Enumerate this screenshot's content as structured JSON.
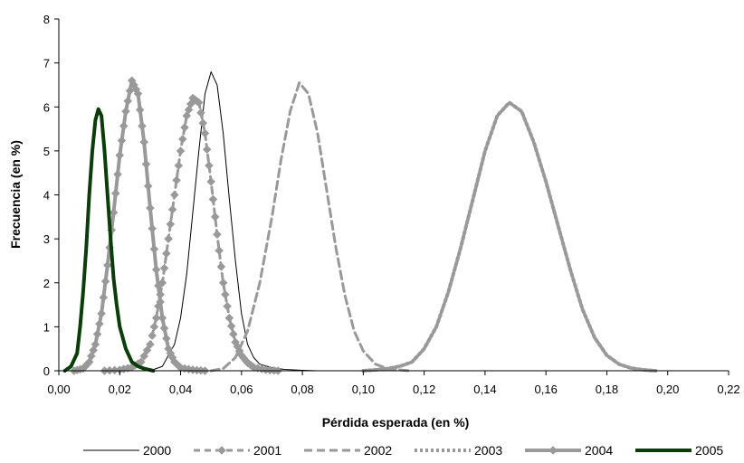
{
  "chart_data": {
    "type": "line",
    "xlabel": "Pérdida esperada (en %)",
    "ylabel": "Frecuencia (en %)",
    "xlim": [
      0,
      0.22
    ],
    "ylim": [
      0,
      8
    ],
    "x_ticks": [
      "0,00",
      "0,02",
      "0,04",
      "0,06",
      "0,08",
      "0,10",
      "0,12",
      "0,14",
      "0,16",
      "0,18",
      "0,20",
      "0,22"
    ],
    "y_ticks": [
      "0",
      "1",
      "2",
      "3",
      "4",
      "5",
      "6",
      "7",
      "8"
    ],
    "grid": false,
    "legend_position": "bottom",
    "series": [
      {
        "name": "2000",
        "color": "#000000",
        "style": "thin-solid",
        "points": [
          [
            0.03,
            0
          ],
          [
            0.034,
            0.1
          ],
          [
            0.038,
            0.6
          ],
          [
            0.04,
            1.2
          ],
          [
            0.042,
            2.2
          ],
          [
            0.044,
            3.6
          ],
          [
            0.046,
            5.0
          ],
          [
            0.048,
            6.3
          ],
          [
            0.05,
            6.8
          ],
          [
            0.052,
            6.5
          ],
          [
            0.054,
            5.4
          ],
          [
            0.056,
            3.9
          ],
          [
            0.058,
            2.5
          ],
          [
            0.06,
            1.3
          ],
          [
            0.062,
            0.6
          ],
          [
            0.064,
            0.3
          ],
          [
            0.066,
            0.15
          ],
          [
            0.07,
            0.07
          ],
          [
            0.074,
            0.03
          ],
          [
            0.08,
            0.01
          ],
          [
            0.085,
            0
          ]
        ]
      },
      {
        "name": "2001",
        "color": "#999999",
        "style": "dashed-diamond",
        "points": [
          [
            0.015,
            0
          ],
          [
            0.02,
            0.02
          ],
          [
            0.024,
            0.08
          ],
          [
            0.027,
            0.2
          ],
          [
            0.03,
            0.6
          ],
          [
            0.032,
            1.2
          ],
          [
            0.034,
            2.0
          ],
          [
            0.036,
            3.0
          ],
          [
            0.038,
            4.0
          ],
          [
            0.04,
            5.0
          ],
          [
            0.042,
            5.8
          ],
          [
            0.044,
            6.2
          ],
          [
            0.046,
            6.1
          ],
          [
            0.048,
            5.4
          ],
          [
            0.05,
            4.3
          ],
          [
            0.052,
            3.1
          ],
          [
            0.054,
            2.0
          ],
          [
            0.056,
            1.2
          ],
          [
            0.058,
            0.65
          ],
          [
            0.06,
            0.35
          ],
          [
            0.062,
            0.18
          ],
          [
            0.064,
            0.08
          ],
          [
            0.068,
            0.02
          ],
          [
            0.072,
            0
          ]
        ]
      },
      {
        "name": "2002",
        "color": "#999999",
        "style": "dashed",
        "points": [
          [
            0.05,
            0
          ],
          [
            0.054,
            0.05
          ],
          [
            0.058,
            0.3
          ],
          [
            0.062,
            0.9
          ],
          [
            0.066,
            2.0
          ],
          [
            0.07,
            3.5
          ],
          [
            0.073,
            4.8
          ],
          [
            0.076,
            5.9
          ],
          [
            0.079,
            6.55
          ],
          [
            0.082,
            6.3
          ],
          [
            0.085,
            5.4
          ],
          [
            0.088,
            4.1
          ],
          [
            0.091,
            2.8
          ],
          [
            0.094,
            1.7
          ],
          [
            0.097,
            0.9
          ],
          [
            0.1,
            0.45
          ],
          [
            0.104,
            0.15
          ],
          [
            0.108,
            0.05
          ],
          [
            0.115,
            0
          ]
        ]
      },
      {
        "name": "2003",
        "color": "#999999",
        "style": "dotted-thick",
        "points": [
          [
            0.1,
            0
          ],
          [
            0.104,
            0.02
          ],
          [
            0.108,
            0.05
          ],
          [
            0.112,
            0.1
          ],
          [
            0.116,
            0.2
          ],
          [
            0.12,
            0.5
          ],
          [
            0.124,
            1.0
          ],
          [
            0.128,
            1.8
          ],
          [
            0.132,
            2.8
          ],
          [
            0.136,
            3.9
          ],
          [
            0.14,
            5.0
          ],
          [
            0.144,
            5.8
          ],
          [
            0.148,
            6.1
          ],
          [
            0.152,
            5.9
          ],
          [
            0.156,
            5.2
          ],
          [
            0.16,
            4.3
          ],
          [
            0.164,
            3.3
          ],
          [
            0.168,
            2.3
          ],
          [
            0.172,
            1.4
          ],
          [
            0.176,
            0.75
          ],
          [
            0.18,
            0.35
          ],
          [
            0.184,
            0.15
          ],
          [
            0.188,
            0.06
          ],
          [
            0.192,
            0.02
          ],
          [
            0.196,
            0
          ]
        ]
      },
      {
        "name": "2004",
        "color": "#999999",
        "style": "thick-diamond",
        "points": [
          [
            0.005,
            0
          ],
          [
            0.008,
            0.05
          ],
          [
            0.01,
            0.2
          ],
          [
            0.012,
            0.6
          ],
          [
            0.014,
            1.3
          ],
          [
            0.016,
            2.4
          ],
          [
            0.018,
            3.6
          ],
          [
            0.02,
            4.9
          ],
          [
            0.022,
            5.9
          ],
          [
            0.024,
            6.6
          ],
          [
            0.026,
            6.3
          ],
          [
            0.028,
            5.2
          ],
          [
            0.03,
            3.7
          ],
          [
            0.032,
            2.3
          ],
          [
            0.034,
            1.2
          ],
          [
            0.036,
            0.5
          ],
          [
            0.038,
            0.2
          ],
          [
            0.04,
            0.07
          ],
          [
            0.044,
            0.02
          ],
          [
            0.048,
            0
          ]
        ]
      },
      {
        "name": "2005",
        "color": "#0b3d0b",
        "style": "thick-solid",
        "points": [
          [
            0.002,
            0
          ],
          [
            0.004,
            0.1
          ],
          [
            0.006,
            0.4
          ],
          [
            0.007,
            1.0
          ],
          [
            0.008,
            1.8
          ],
          [
            0.009,
            2.8
          ],
          [
            0.01,
            4.0
          ],
          [
            0.011,
            5.0
          ],
          [
            0.012,
            5.7
          ],
          [
            0.013,
            5.95
          ],
          [
            0.014,
            5.8
          ],
          [
            0.015,
            5.0
          ],
          [
            0.016,
            4.0
          ],
          [
            0.017,
            3.0
          ],
          [
            0.018,
            2.1
          ],
          [
            0.019,
            1.5
          ],
          [
            0.02,
            1.0
          ],
          [
            0.022,
            0.5
          ],
          [
            0.024,
            0.2
          ],
          [
            0.026,
            0.1
          ],
          [
            0.028,
            0.05
          ],
          [
            0.031,
            0
          ]
        ]
      }
    ]
  }
}
